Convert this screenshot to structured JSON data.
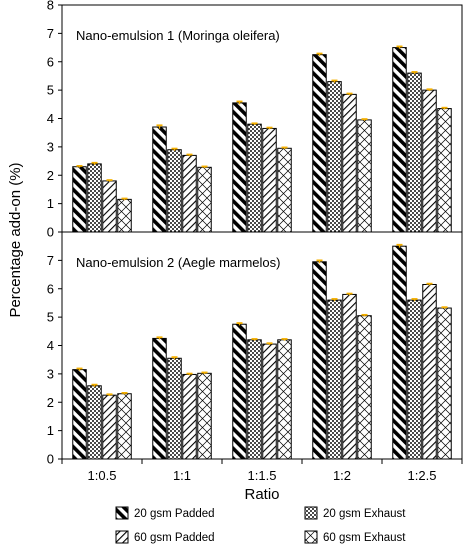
{
  "chart_data": {
    "type": "bar",
    "xlabel": "Ratio",
    "ylabel": "Percentage add-on (%)",
    "categories": [
      "1:0.5",
      "1:1",
      "1:1.5",
      "1:2",
      "1:2.5"
    ],
    "legend": {
      "placement": "bottom",
      "entries": [
        {
          "name": "20 gsm Padded",
          "pattern": "diagonal-thick"
        },
        {
          "name": "20 gsm Exhaust",
          "pattern": "dots"
        },
        {
          "name": "60 gsm Padded",
          "pattern": "diagonal-thin"
        },
        {
          "name": "60 gsm Exhaust",
          "pattern": "crosshatch"
        }
      ]
    },
    "error_bar_color": "#F5B000",
    "panels": [
      {
        "label": "Nano-emulsion 1 (Moringa oleifera)",
        "ylim": [
          0,
          8
        ],
        "yticks": [
          0,
          1,
          2,
          3,
          4,
          5,
          6,
          7,
          8
        ],
        "series": [
          {
            "name": "20 gsm Padded",
            "values": [
              2.3,
              3.7,
              4.55,
              6.25,
              6.5
            ]
          },
          {
            "name": "20 gsm Exhaust",
            "values": [
              2.4,
              2.9,
              3.8,
              5.3,
              5.6
            ]
          },
          {
            "name": "60 gsm Padded",
            "values": [
              1.8,
              2.7,
              3.65,
              4.85,
              5.0
            ]
          },
          {
            "name": "60 gsm Exhaust",
            "values": [
              1.15,
              2.28,
              2.95,
              3.95,
              4.35
            ]
          }
        ],
        "errors": [
          [
            0.03,
            0.06,
            0.05,
            0.04,
            0.04
          ],
          [
            0.04,
            0.04,
            0.03,
            0.04,
            0.04
          ],
          [
            0.03,
            0.03,
            0.03,
            0.03,
            0.03
          ],
          [
            0.03,
            0.03,
            0.03,
            0.03,
            0.03
          ]
        ]
      },
      {
        "label": "Nano-emulsion 2 (Aegle marmelos)",
        "ylim": [
          0,
          8
        ],
        "yticks": [
          0,
          1,
          2,
          3,
          4,
          5,
          6,
          7
        ],
        "series": [
          {
            "name": "20 gsm Padded",
            "values": [
              3.15,
              4.25,
              4.75,
              6.95,
              7.5
            ]
          },
          {
            "name": "20 gsm Exhaust",
            "values": [
              2.58,
              3.55,
              4.2,
              5.6,
              5.6
            ]
          },
          {
            "name": "60 gsm Padded",
            "values": [
              2.25,
              2.98,
              4.05,
              5.8,
              6.15
            ]
          },
          {
            "name": "60 gsm Exhaust",
            "values": [
              2.3,
              3.02,
              4.2,
              5.05,
              5.32
            ]
          }
        ],
        "errors": [
          [
            0.04,
            0.04,
            0.04,
            0.05,
            0.05
          ],
          [
            0.04,
            0.04,
            0.03,
            0.04,
            0.04
          ],
          [
            0.03,
            0.03,
            0.03,
            0.03,
            0.03
          ],
          [
            0.03,
            0.03,
            0.03,
            0.03,
            0.03
          ]
        ]
      }
    ]
  }
}
